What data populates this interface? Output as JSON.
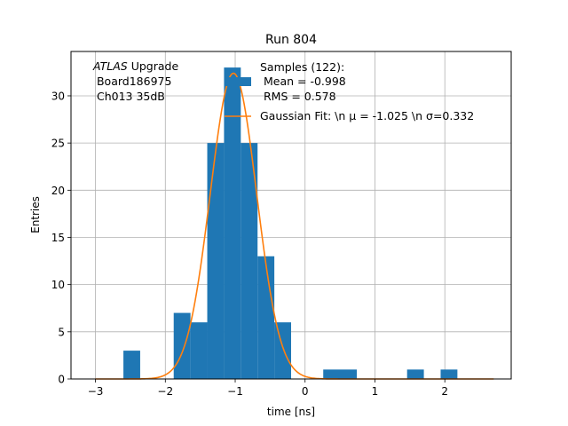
{
  "chart_data": {
    "type": "bar",
    "title": "Run 804",
    "xlabel": "time [ns]",
    "ylabel": "Entries",
    "xlim": [
      -3.35,
      2.95
    ],
    "ylim": [
      0,
      34.7
    ],
    "xticks": [
      -3,
      -2,
      -1,
      0,
      1,
      2
    ],
    "yticks": [
      0,
      5,
      10,
      15,
      20,
      25,
      30
    ],
    "grid": true,
    "bar_color": "#1f77b4",
    "line_color": "#ff7f0e",
    "bins": [
      {
        "x0": -2.6,
        "x1": -2.36,
        "count": 3
      },
      {
        "x0": -1.88,
        "x1": -1.64,
        "count": 7
      },
      {
        "x0": -1.64,
        "x1": -1.4,
        "count": 6
      },
      {
        "x0": -1.4,
        "x1": -1.16,
        "count": 25
      },
      {
        "x0": -1.16,
        "x1": -0.92,
        "count": 33
      },
      {
        "x0": -0.92,
        "x1": -0.68,
        "count": 25
      },
      {
        "x0": -0.68,
        "x1": -0.44,
        "count": 13
      },
      {
        "x0": -0.44,
        "x1": -0.2,
        "count": 6
      },
      {
        "x0": 0.26,
        "x1": 0.74,
        "count": 1
      },
      {
        "x0": 1.46,
        "x1": 1.7,
        "count": 1
      },
      {
        "x0": 1.94,
        "x1": 2.18,
        "count": 1
      }
    ],
    "fit": {
      "mu": -1.025,
      "sigma": 0.332,
      "amplitude": 32.4,
      "x_range": [
        -3.0,
        2.7
      ]
    },
    "annotation": {
      "italic": "ATLAS",
      "rest": " Upgrade",
      "line2": " Board186975",
      "line3": " Ch013 35dB"
    },
    "legend": {
      "position": "upper-right",
      "samples_line1": "Samples (122):",
      "samples_line2": " Mean = -0.998",
      "samples_line3": " RMS = 0.578",
      "fit_label": "Gaussian Fit: \\n μ = -1.025 \\n σ=0.332"
    }
  }
}
